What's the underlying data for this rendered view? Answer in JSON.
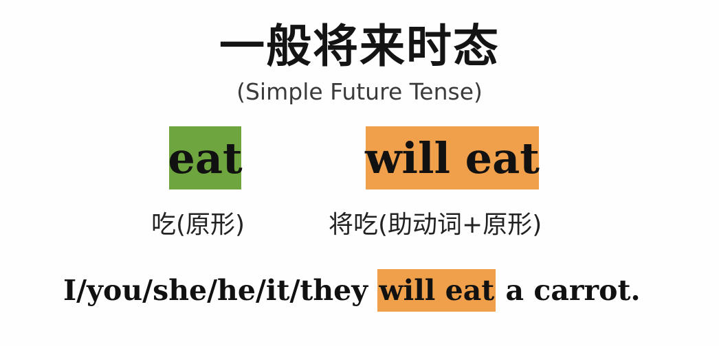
{
  "title": "一般将来时态",
  "subtitle": "(Simple Future Tense)",
  "words": {
    "base": {
      "text": "eat",
      "color": "#6ea53f",
      "label": "吃(原形)"
    },
    "future": {
      "text": "will eat",
      "color": "#f0a04a",
      "label": "将吃(助动词+原形)"
    }
  },
  "example": {
    "prefix": "I/you/she/he/it/they",
    "highlight": "will eat",
    "suffix": "a carrot."
  }
}
